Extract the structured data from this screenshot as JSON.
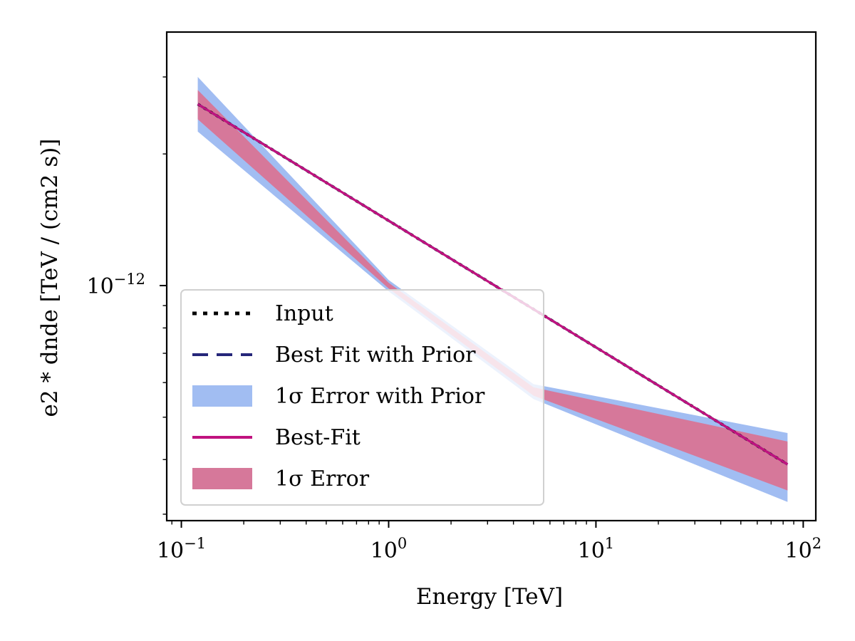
{
  "chart_data": {
    "type": "line",
    "xlabel": "Energy [TeV]",
    "ylabel": "e2 * dnde [TeV / (cm2 s)]",
    "xscale": "log",
    "yscale": "log",
    "xlim": [
      0.085,
      115
    ],
    "ylim": [
      2.9e-13,
      3.8e-12
    ],
    "x_ticks": [
      {
        "value": 0.1,
        "base": "10",
        "exp": "−1"
      },
      {
        "value": 1,
        "base": "10",
        "exp": "0"
      },
      {
        "value": 10,
        "base": "10",
        "exp": "1"
      },
      {
        "value": 100,
        "base": "10",
        "exp": "2"
      }
    ],
    "y_ticks": [
      {
        "value": 1e-12,
        "base": "10",
        "exp": "−12"
      }
    ],
    "legend_position": "lower-left",
    "grid": false,
    "series": [
      {
        "name": "Input",
        "style": "dotted",
        "color": "#000000",
        "x": [
          0.12,
          84
        ],
        "y": [
          2.6e-12,
          3.9e-13
        ]
      },
      {
        "name": "Best Fit with Prior",
        "style": "dashed",
        "color": "#26277a",
        "x": [
          0.12,
          84
        ],
        "y": [
          2.6e-12,
          3.9e-13
        ]
      },
      {
        "name": "Best-Fit",
        "style": "solid",
        "color": "#c0127f",
        "x": [
          0.12,
          84
        ],
        "y": [
          2.6e-12,
          3.9e-13
        ]
      }
    ],
    "bands": [
      {
        "name": "1σ Error with Prior",
        "color": "#a1bdf2",
        "x": [
          0.12,
          1,
          5,
          84
        ],
        "lower": [
          2.25e-12,
          9.7e-13,
          5.5e-13,
          3.2e-13
        ],
        "upper": [
          3e-12,
          1.03e-12,
          5.95e-13,
          4.6e-13
        ]
      },
      {
        "name": "1σ Error",
        "color": "#d6789a",
        "x": [
          0.12,
          1,
          5,
          84
        ],
        "lower": [
          2.4e-12,
          9.85e-13,
          5.6e-13,
          3.4e-13
        ],
        "upper": [
          2.8e-12,
          1.015e-12,
          5.85e-13,
          4.4e-13
        ]
      }
    ],
    "legend": [
      {
        "label": "Input",
        "kind": "dotted",
        "color": "#000000"
      },
      {
        "label": "Best Fit with Prior",
        "kind": "dashed",
        "color": "#26277a"
      },
      {
        "label": "1σ Error with Prior",
        "kind": "patch",
        "color": "#a1bdf2"
      },
      {
        "label": "Best-Fit",
        "kind": "solid",
        "color": "#c0127f"
      },
      {
        "label": "1σ Error",
        "kind": "patch",
        "color": "#d6789a"
      }
    ]
  }
}
